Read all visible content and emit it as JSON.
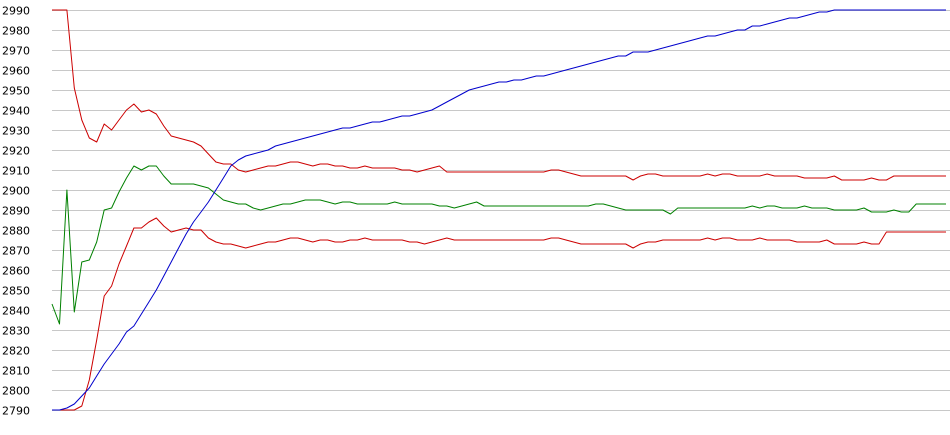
{
  "chart_data": {
    "type": "line",
    "title": "",
    "xlabel": "",
    "ylabel": "",
    "ylim": [
      2790,
      2990
    ],
    "yticks": [
      2790,
      2800,
      2810,
      2820,
      2830,
      2840,
      2850,
      2860,
      2870,
      2880,
      2890,
      2900,
      2910,
      2920,
      2930,
      2940,
      2950,
      2960,
      2970,
      2980,
      2990
    ],
    "ytick_labels": [
      "2790",
      "2800",
      "2810",
      "2820",
      "2830",
      "2840",
      "2850",
      "2860",
      "2870",
      "2880",
      "2890",
      "2900",
      "2910",
      "2920",
      "2930",
      "2940",
      "2950",
      "2960",
      "2970",
      "2980",
      "2990"
    ],
    "grid": true,
    "legend": "none",
    "x": [
      0,
      1,
      2,
      3,
      4,
      5,
      6,
      7,
      8,
      9,
      10,
      11,
      12,
      13,
      14,
      15,
      16,
      17,
      18,
      19,
      20,
      21,
      22,
      23,
      24,
      25,
      26,
      27,
      28,
      29,
      30,
      31,
      32,
      33,
      34,
      35,
      36,
      37,
      38,
      39,
      40,
      41,
      42,
      43,
      44,
      45,
      46,
      47,
      48,
      49,
      50,
      51,
      52,
      53,
      54,
      55,
      56,
      57,
      58,
      59,
      60,
      61,
      62,
      63,
      64,
      65,
      66,
      67,
      68,
      69,
      70,
      71,
      72,
      73,
      74,
      75,
      76,
      77,
      78,
      79,
      80,
      81,
      82,
      83,
      84,
      85,
      86,
      87,
      88,
      89,
      90,
      91,
      92,
      93,
      94,
      95,
      96,
      97,
      98,
      99,
      100,
      101,
      102,
      103,
      104,
      105,
      106,
      107,
      108,
      109,
      110,
      111,
      112,
      113,
      114,
      115,
      116,
      117,
      118,
      119,
      120
    ],
    "series": [
      {
        "color": "#cc0000",
        "values": [
          2990,
          2990,
          2990,
          2951,
          2935,
          2926,
          2924,
          2933,
          2930,
          2935,
          2940,
          2943,
          2939,
          2940,
          2938,
          2932,
          2927,
          2926,
          2925,
          2924,
          2922,
          2918,
          2914,
          2913,
          2913,
          2910,
          2909,
          2910,
          2911,
          2912,
          2912,
          2913,
          2914,
          2914,
          2913,
          2912,
          2913,
          2913,
          2912,
          2912,
          2911,
          2911,
          2912,
          2911,
          2911,
          2911,
          2911,
          2910,
          2910,
          2909,
          2910,
          2911,
          2912,
          2909,
          2909,
          2909,
          2909,
          2909,
          2909,
          2909,
          2909,
          2909,
          2909,
          2909,
          2909,
          2909,
          2909,
          2910,
          2910,
          2909,
          2908,
          2907,
          2907,
          2907,
          2907,
          2907,
          2907,
          2907,
          2905,
          2907,
          2908,
          2908,
          2907,
          2907,
          2907,
          2907,
          2907,
          2907,
          2908,
          2907,
          2908,
          2908,
          2907,
          2907,
          2907,
          2907,
          2908,
          2907,
          2907,
          2907,
          2907,
          2906,
          2906,
          2906,
          2906,
          2907,
          2905,
          2905,
          2905,
          2905,
          2906,
          2905,
          2905,
          2907,
          2907,
          2907,
          2907,
          2907,
          2907,
          2907,
          2907
        ]
      },
      {
        "color": "#008000",
        "values": [
          2843,
          2833,
          2900,
          2839,
          2864,
          2865,
          2874,
          2890,
          2891,
          2899,
          2906,
          2912,
          2910,
          2912,
          2912,
          2907,
          2903,
          2903,
          2903,
          2903,
          2902,
          2901,
          2898,
          2895,
          2894,
          2893,
          2893,
          2891,
          2890,
          2891,
          2892,
          2893,
          2893,
          2894,
          2895,
          2895,
          2895,
          2894,
          2893,
          2894,
          2894,
          2893,
          2893,
          2893,
          2893,
          2893,
          2894,
          2893,
          2893,
          2893,
          2893,
          2893,
          2892,
          2892,
          2891,
          2892,
          2893,
          2894,
          2892,
          2892,
          2892,
          2892,
          2892,
          2892,
          2892,
          2892,
          2892,
          2892,
          2892,
          2892,
          2892,
          2892,
          2892,
          2893,
          2893,
          2892,
          2891,
          2890,
          2890,
          2890,
          2890,
          2890,
          2890,
          2888,
          2891,
          2891,
          2891,
          2891,
          2891,
          2891,
          2891,
          2891,
          2891,
          2891,
          2892,
          2891,
          2892,
          2892,
          2891,
          2891,
          2891,
          2892,
          2891,
          2891,
          2891,
          2890,
          2890,
          2890,
          2890,
          2891,
          2889,
          2889,
          2889,
          2890,
          2889,
          2889,
          2893,
          2893,
          2893,
          2893,
          2893
        ]
      },
      {
        "color": "#cc0000",
        "values": [
          2790,
          2790,
          2790,
          2790,
          2792,
          2805,
          2825,
          2847,
          2852,
          2863,
          2872,
          2881,
          2881,
          2884,
          2886,
          2882,
          2879,
          2880,
          2881,
          2880,
          2880,
          2876,
          2874,
          2873,
          2873,
          2872,
          2871,
          2872,
          2873,
          2874,
          2874,
          2875,
          2876,
          2876,
          2875,
          2874,
          2875,
          2875,
          2874,
          2874,
          2875,
          2875,
          2876,
          2875,
          2875,
          2875,
          2875,
          2875,
          2874,
          2874,
          2873,
          2874,
          2875,
          2876,
          2875,
          2875,
          2875,
          2875,
          2875,
          2875,
          2875,
          2875,
          2875,
          2875,
          2875,
          2875,
          2875,
          2876,
          2876,
          2875,
          2874,
          2873,
          2873,
          2873,
          2873,
          2873,
          2873,
          2873,
          2871,
          2873,
          2874,
          2874,
          2875,
          2875,
          2875,
          2875,
          2875,
          2875,
          2876,
          2875,
          2876,
          2876,
          2875,
          2875,
          2875,
          2876,
          2875,
          2875,
          2875,
          2875,
          2874,
          2874,
          2874,
          2874,
          2875,
          2873,
          2873,
          2873,
          2873,
          2874,
          2873,
          2873,
          2879,
          2879,
          2879,
          2879,
          2879,
          2879,
          2879,
          2879,
          2879
        ]
      },
      {
        "color": "#0000cc",
        "values": [
          2790,
          2790,
          2791,
          2793,
          2797,
          2801,
          2807,
          2813,
          2818,
          2823,
          2829,
          2832,
          2838,
          2844,
          2850,
          2857,
          2864,
          2871,
          2878,
          2884,
          2889,
          2894,
          2900,
          2906,
          2912,
          2915,
          2917,
          2918,
          2919,
          2920,
          2922,
          2923,
          2924,
          2925,
          2926,
          2927,
          2928,
          2929,
          2930,
          2931,
          2931,
          2932,
          2933,
          2934,
          2934,
          2935,
          2936,
          2937,
          2937,
          2938,
          2939,
          2940,
          2942,
          2944,
          2946,
          2948,
          2950,
          2951,
          2952,
          2953,
          2954,
          2954,
          2955,
          2955,
          2956,
          2957,
          2957,
          2958,
          2959,
          2960,
          2961,
          2962,
          2963,
          2964,
          2965,
          2966,
          2967,
          2967,
          2969,
          2969,
          2969,
          2970,
          2971,
          2972,
          2973,
          2974,
          2975,
          2976,
          2977,
          2977,
          2978,
          2979,
          2980,
          2980,
          2982,
          2982,
          2983,
          2984,
          2985,
          2986,
          2986,
          2987,
          2988,
          2989,
          2989,
          2990,
          2990,
          2990,
          2990,
          2990,
          2990,
          2990,
          2990,
          2990,
          2990,
          2990,
          2990,
          2990,
          2990,
          2990,
          2990
        ]
      }
    ]
  }
}
